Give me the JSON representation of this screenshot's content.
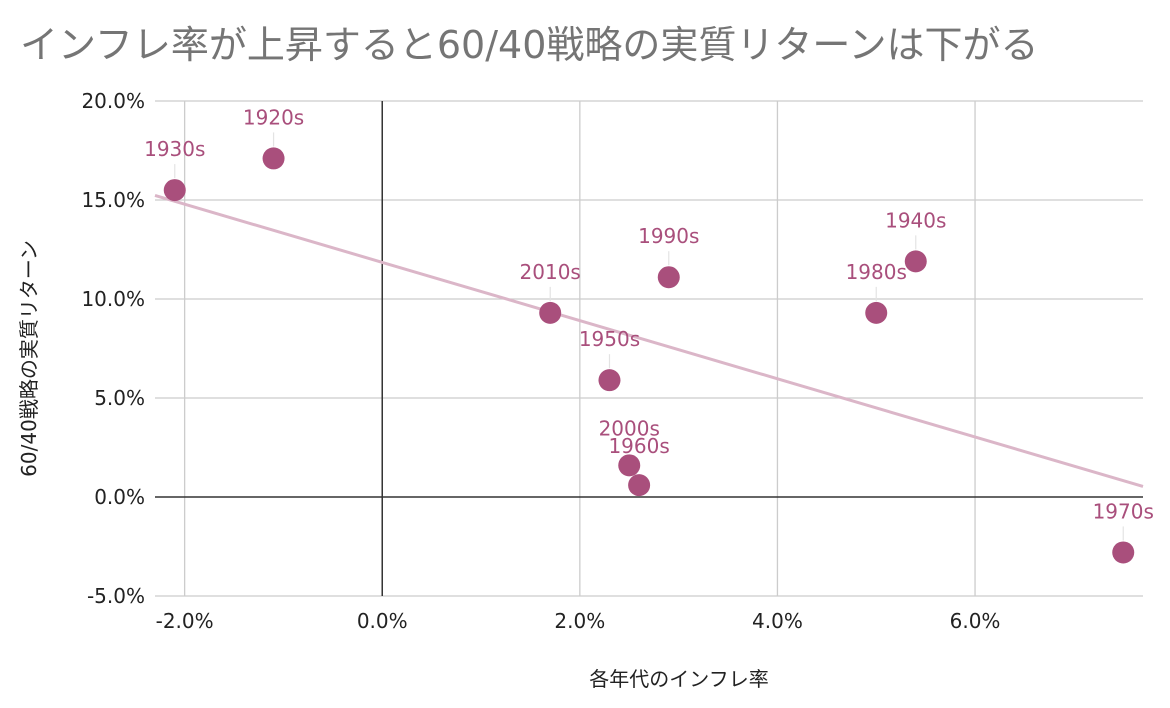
{
  "chart_data": {
    "type": "scatter",
    "title": "インフレ率が上昇すると60/40戦略の実質リターンは下がる",
    "xlabel": "各年代のインフレ率",
    "ylabel": "60/40戦略の実質リターン",
    "xlim": [
      -2.3,
      7.7
    ],
    "ylim": [
      -5.0,
      20.0
    ],
    "x_ticks": [
      -2.0,
      0.0,
      2.0,
      4.0,
      6.0
    ],
    "x_tick_labels": [
      "-2.0%",
      "0.0%",
      "2.0%",
      "4.0%",
      "6.0%"
    ],
    "y_ticks": [
      -5.0,
      0.0,
      5.0,
      10.0,
      15.0,
      20.0
    ],
    "y_tick_labels": [
      "-5.0%",
      "0.0%",
      "5.0%",
      "10.0%",
      "15.0%",
      "20.0%"
    ],
    "grid": true,
    "legend": "none",
    "point_color": "#a94f7c",
    "trendline_color": "#dbb6c8",
    "points": [
      {
        "label": "1920s",
        "x": -1.1,
        "y": 17.1
      },
      {
        "label": "1930s",
        "x": -2.1,
        "y": 15.5
      },
      {
        "label": "1940s",
        "x": 5.4,
        "y": 11.9
      },
      {
        "label": "1950s",
        "x": 2.3,
        "y": 5.9
      },
      {
        "label": "1960s",
        "x": 2.6,
        "y": 0.6
      },
      {
        "label": "1970s",
        "x": 7.5,
        "y": -2.8
      },
      {
        "label": "1980s",
        "x": 5.0,
        "y": 9.3
      },
      {
        "label": "1990s",
        "x": 2.9,
        "y": 11.1
      },
      {
        "label": "2000s",
        "x": 2.5,
        "y": 1.6
      },
      {
        "label": "2010s",
        "x": 1.7,
        "y": 9.3
      }
    ],
    "trendline": {
      "slope": -1.47,
      "intercept": 11.85
    }
  }
}
